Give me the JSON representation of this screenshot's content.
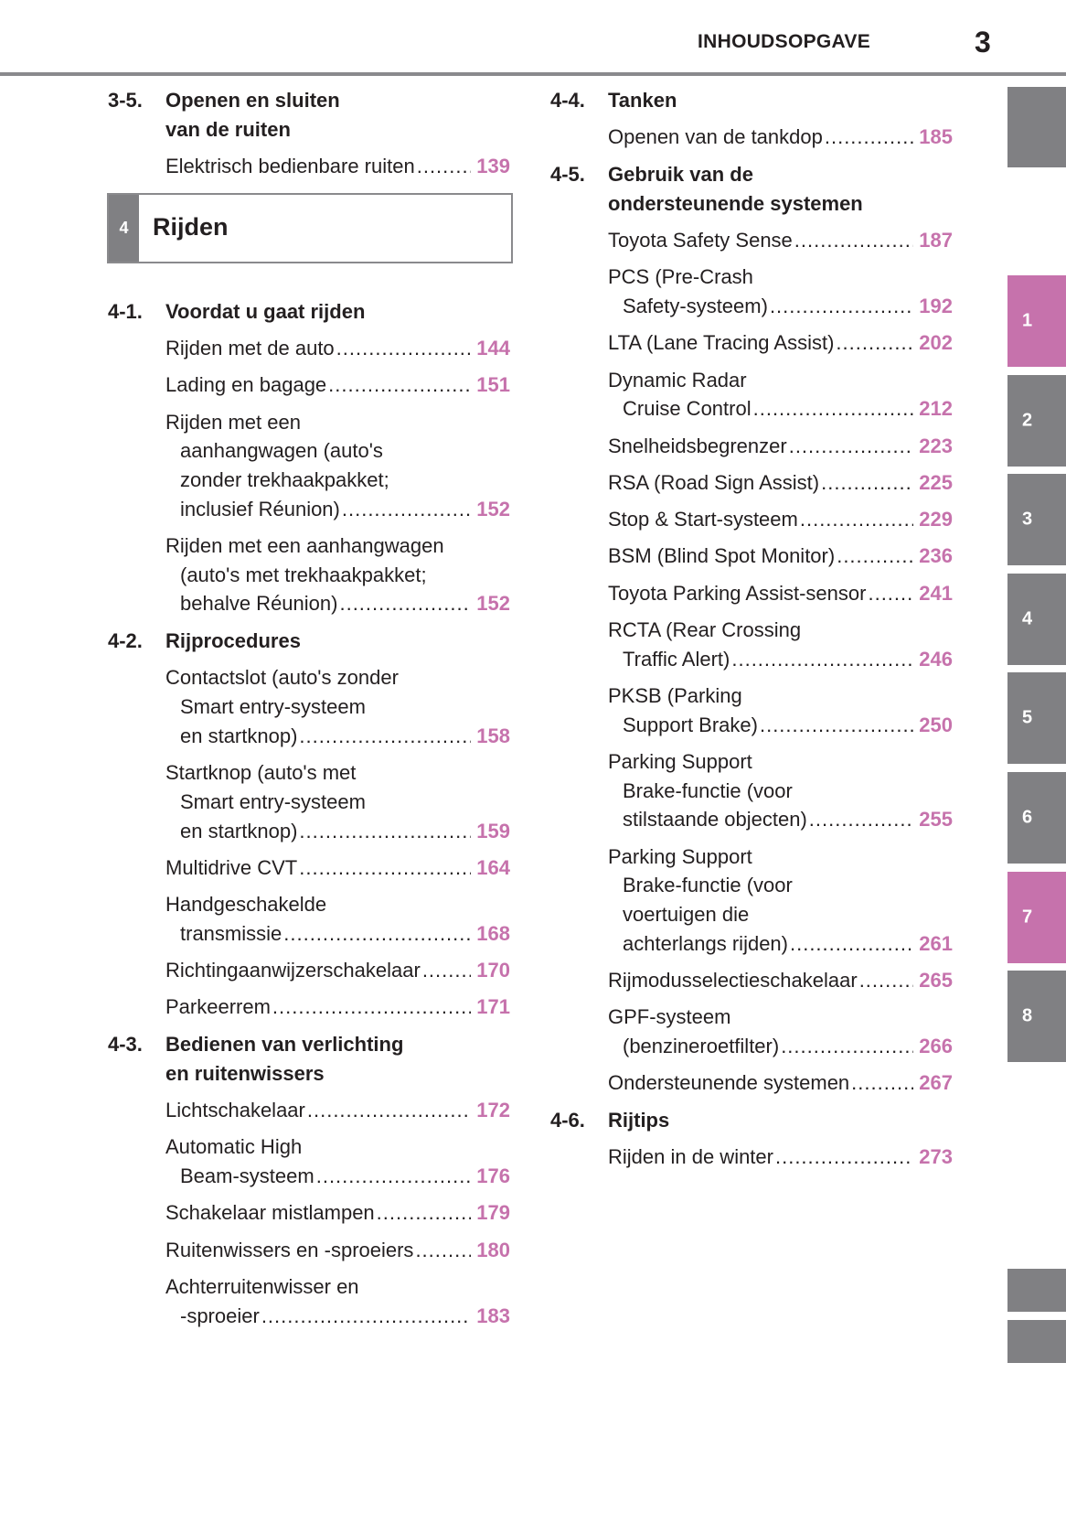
{
  "header": {
    "title": "INHOUDSOPGAVE",
    "page_number": "3"
  },
  "colors": {
    "accent": "#c672ac",
    "tab_grey": "#808083",
    "rule": "#8a8a8d"
  },
  "left": [
    {
      "type": "section",
      "num": "3-5.",
      "title": [
        "Openen en sluiten",
        "van de ruiten"
      ]
    },
    {
      "type": "entry",
      "lines": [
        "Elektrisch bedienbare ruiten"
      ],
      "page": "139"
    },
    {
      "type": "chapter",
      "num": "4",
      "title": "Rijden"
    },
    {
      "type": "section",
      "num": "4-1.",
      "title": [
        "Voordat u gaat rijden"
      ]
    },
    {
      "type": "entry",
      "lines": [
        "Rijden met de auto"
      ],
      "page": "144"
    },
    {
      "type": "entry",
      "lines": [
        "Lading en bagage"
      ],
      "page": "151"
    },
    {
      "type": "entry",
      "lines": [
        "Rijden met een",
        "aanhangwagen (auto's",
        "zonder trekhaakpakket;",
        "inclusief Réunion)"
      ],
      "page": "152"
    },
    {
      "type": "entry",
      "lines": [
        "Rijden met een aanhangwagen",
        "(auto's met trekhaakpakket;",
        "behalve Réunion)"
      ],
      "page": "152"
    },
    {
      "type": "section",
      "num": "4-2.",
      "title": [
        "Rijprocedures"
      ]
    },
    {
      "type": "entry",
      "lines": [
        "Contactslot (auto's zonder",
        "Smart entry-systeem",
        "en startknop)"
      ],
      "page": "158"
    },
    {
      "type": "entry",
      "lines": [
        "Startknop (auto's met",
        "Smart entry-systeem",
        "en startknop)"
      ],
      "page": "159"
    },
    {
      "type": "entry",
      "lines": [
        "Multidrive CVT"
      ],
      "page": "164"
    },
    {
      "type": "entry",
      "lines": [
        "Handgeschakelde",
        "transmissie"
      ],
      "page": "168"
    },
    {
      "type": "entry",
      "lines": [
        "Richtingaanwijzerschakelaar"
      ],
      "page": "170"
    },
    {
      "type": "entry",
      "lines": [
        "Parkeerrem"
      ],
      "page": "171"
    },
    {
      "type": "section",
      "num": "4-3.",
      "title": [
        "Bedienen van verlichting",
        "en ruitenwissers"
      ]
    },
    {
      "type": "entry",
      "lines": [
        "Lichtschakelaar"
      ],
      "page": "172"
    },
    {
      "type": "entry",
      "lines": [
        "Automatic High",
        "Beam-systeem"
      ],
      "page": "176"
    },
    {
      "type": "entry",
      "lines": [
        "Schakelaar mistlampen"
      ],
      "page": "179"
    },
    {
      "type": "entry",
      "lines": [
        "Ruitenwissers en -sproeiers"
      ],
      "page": "180"
    },
    {
      "type": "entry",
      "lines": [
        "Achterruitenwisser en",
        "-sproeier"
      ],
      "page": "183"
    }
  ],
  "right": [
    {
      "type": "section",
      "num": "4-4.",
      "title": [
        "Tanken"
      ]
    },
    {
      "type": "entry",
      "lines": [
        "Openen van de tankdop"
      ],
      "page": "185"
    },
    {
      "type": "section",
      "num": "4-5.",
      "title": [
        "Gebruik van de",
        "ondersteunende systemen"
      ]
    },
    {
      "type": "entry",
      "lines": [
        "Toyota Safety Sense"
      ],
      "page": "187"
    },
    {
      "type": "entry",
      "lines": [
        "PCS (Pre-Crash",
        "Safety-systeem)"
      ],
      "page": "192"
    },
    {
      "type": "entry",
      "lines": [
        "LTA (Lane Tracing Assist)"
      ],
      "page": "202"
    },
    {
      "type": "entry",
      "lines": [
        "Dynamic Radar",
        "Cruise Control"
      ],
      "page": "212"
    },
    {
      "type": "entry",
      "lines": [
        "Snelheidsbegrenzer"
      ],
      "page": "223"
    },
    {
      "type": "entry",
      "lines": [
        "RSA (Road Sign Assist)"
      ],
      "page": "225"
    },
    {
      "type": "entry",
      "lines": [
        "Stop & Start-systeem"
      ],
      "page": "229"
    },
    {
      "type": "entry",
      "lines": [
        "BSM (Blind Spot Monitor)"
      ],
      "page": "236"
    },
    {
      "type": "entry",
      "lines": [
        "Toyota Parking Assist-sensor"
      ],
      "page": "241"
    },
    {
      "type": "entry",
      "lines": [
        "RCTA (Rear Crossing",
        "Traffic Alert)"
      ],
      "page": "246"
    },
    {
      "type": "entry",
      "lines": [
        "PKSB (Parking",
        "Support Brake)"
      ],
      "page": "250"
    },
    {
      "type": "entry",
      "lines": [
        "Parking Support",
        "Brake-functie (voor",
        "stilstaande objecten)"
      ],
      "page": "255"
    },
    {
      "type": "entry",
      "lines": [
        "Parking Support",
        "Brake-functie (voor",
        "voertuigen die",
        "achterlangs rijden)"
      ],
      "page": "261"
    },
    {
      "type": "entry",
      "lines": [
        "Rijmodusselectieschakelaar"
      ],
      "page": "265"
    },
    {
      "type": "entry",
      "lines": [
        "GPF-systeem",
        "(benzineroetfilter)"
      ],
      "page": "266"
    },
    {
      "type": "entry",
      "lines": [
        "Ondersteunende systemen"
      ],
      "page": "267"
    },
    {
      "type": "section",
      "num": "4-6.",
      "title": [
        "Rijtips"
      ]
    },
    {
      "type": "entry",
      "lines": [
        "Rijden in de winter"
      ],
      "page": "273"
    }
  ],
  "tabs": [
    {
      "label": "",
      "active": false
    },
    {
      "label": "1",
      "active": true
    },
    {
      "label": "2",
      "active": false
    },
    {
      "label": "3",
      "active": false
    },
    {
      "label": "4",
      "active": false
    },
    {
      "label": "5",
      "active": false
    },
    {
      "label": "6",
      "active": false
    },
    {
      "label": "7",
      "active": true
    },
    {
      "label": "8",
      "active": false
    },
    {
      "label": "",
      "active": false
    },
    {
      "label": "",
      "active": false
    }
  ]
}
